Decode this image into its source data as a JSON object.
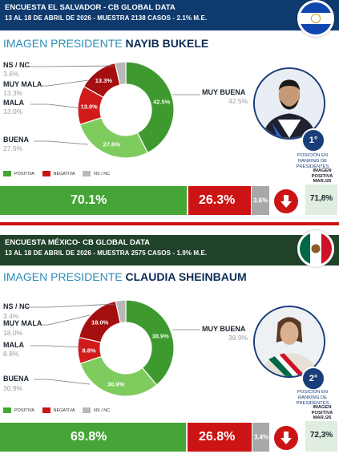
{
  "colors": {
    "positive": "#45a536",
    "positive_light": "#7fcc5e",
    "negative": "#cc1414",
    "nsnc": "#a8a8a8"
  },
  "legend": {
    "positive": "POSITIVA",
    "negative": "NEGATIVA",
    "nsnc": "NS / NC"
  },
  "panels": [
    {
      "header_line1": "ENCUESTA EL SALVADOR - CB GLOBAL DATA",
      "header_line2": "13 AL 18 DE ABRIL DE 2026 - MUESTRA 2138 CASOS - 2.1% M.E.",
      "title_prefix": "IMAGEN PRESIDENTE",
      "title_name": "NAYIB BUKELE",
      "rank": "1°",
      "rank_text": "POSICIÓN EN RANKING DE PRESIDENTES",
      "flag": "el-salvador-flag",
      "bar": {
        "positive": "70.1%",
        "negative": "26.3%",
        "nsnc": "3.6%"
      },
      "imagen_positiva_label": "IMAGEN POSITIVA MAR./26",
      "imagen_positiva_value": "71,8%",
      "trend_icon": "arrow-down-icon"
    },
    {
      "header_line1": "ENCUESTA MÉXICO- CB GLOBAL DATA",
      "header_line2": "13 AL 18 DE ABRIL DE 2026 - MUESTRA 2575 CASOS - 1.9% M.E.",
      "title_prefix": "IMAGEN PRESIDENTE",
      "title_name": "CLAUDIA SHEINBAUM",
      "rank": "2°",
      "rank_text": "POSICIÓN EN RANKING DE PRESIDENTES",
      "flag": "mexico-flag",
      "bar": {
        "positive": "69.8%",
        "negative": "26.8%",
        "nsnc": "3.4%"
      },
      "imagen_positiva_label": "IMAGEN POSITIVA MAR./26",
      "imagen_positiva_value": "72,3%",
      "trend_icon": "arrow-down-icon"
    }
  ],
  "chart_data": [
    {
      "type": "pie",
      "variant": "donut",
      "categories": [
        "MUY BUENA",
        "BUENA",
        "MALA",
        "MUY MALA",
        "NS / NC"
      ],
      "values": [
        42.5,
        27.6,
        13.0,
        13.3,
        3.6
      ],
      "value_labels": [
        "42.5%",
        "27.6%",
        "13.0%",
        "13.3%",
        "3.6%"
      ],
      "colors": [
        "#3e9a2f",
        "#7fcc5e",
        "#d11a1a",
        "#a50f0f",
        "#b8b8b8"
      ]
    },
    {
      "type": "pie",
      "variant": "donut",
      "categories": [
        "MUY BUENA",
        "BUENA",
        "MALA",
        "MUY MALA",
        "NS / NC"
      ],
      "values": [
        38.9,
        30.9,
        8.8,
        18.0,
        3.4
      ],
      "value_labels": [
        "38.9%",
        "30.9%",
        "8.8%",
        "18.0%",
        "3.4%"
      ],
      "colors": [
        "#3e9a2f",
        "#7fcc5e",
        "#d11a1a",
        "#a50f0f",
        "#b8b8b8"
      ]
    }
  ]
}
